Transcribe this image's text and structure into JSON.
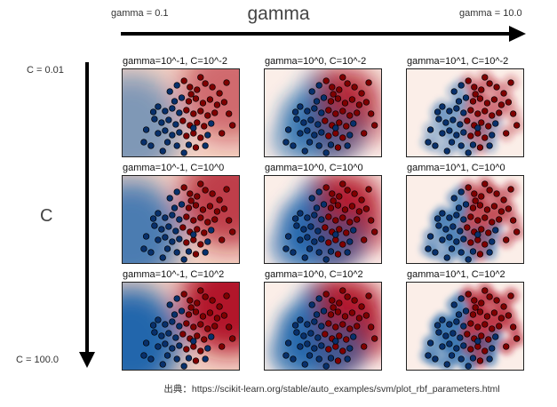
{
  "axes_annotations": {
    "gamma_title": "gamma",
    "gamma_left": "gamma = 0.1",
    "gamma_right": "gamma = 10.0",
    "c_title": "C",
    "c_top": "C = 0.01",
    "c_bottom": "C = 100.0"
  },
  "source_note": "出典：https://scikit-learn.org/stable/auto_examples/svm/plot_rbf_parameters.html",
  "colors": {
    "class_a": "#b2182b",
    "class_b": "#2166ac",
    "neutral": "#f7f7f7",
    "arrow": "#000000"
  },
  "chart_data": {
    "type": "heatmap",
    "layout": "3x3 grid of decision-function heatmaps with scatter overlay",
    "colormap": "RdBu",
    "gamma_values": [
      0.1,
      1.0,
      10.0
    ],
    "C_values": [
      0.01,
      1.0,
      100.0
    ],
    "panels": [
      {
        "title": "gamma=10^-1, C=10^-2",
        "gamma": 0.1,
        "C": 0.01
      },
      {
        "title": "gamma=10^0, C=10^-2",
        "gamma": 1.0,
        "C": 0.01
      },
      {
        "title": "gamma=10^1, C=10^-2",
        "gamma": 10.0,
        "C": 0.01
      },
      {
        "title": "gamma=10^-1, C=10^0",
        "gamma": 0.1,
        "C": 1.0
      },
      {
        "title": "gamma=10^0, C=10^0",
        "gamma": 1.0,
        "C": 1.0
      },
      {
        "title": "gamma=10^1, C=10^0",
        "gamma": 10.0,
        "C": 1.0
      },
      {
        "title": "gamma=10^-1, C=10^2",
        "gamma": 0.1,
        "C": 100.0
      },
      {
        "title": "gamma=10^0, C=10^2",
        "gamma": 1.0,
        "C": 100.0
      },
      {
        "title": "gamma=10^1, C=10^2",
        "gamma": 10.0,
        "C": 100.0
      }
    ],
    "scatter_points": [
      {
        "x": 0.4,
        "y": 0.25,
        "c": 0
      },
      {
        "x": 0.46,
        "y": 0.18,
        "c": 0
      },
      {
        "x": 0.52,
        "y": 0.13,
        "c": 1
      },
      {
        "x": 0.57,
        "y": 0.2,
        "c": 1
      },
      {
        "x": 0.63,
        "y": 0.23,
        "c": 1
      },
      {
        "x": 0.7,
        "y": 0.16,
        "c": 1
      },
      {
        "x": 0.76,
        "y": 0.2,
        "c": 1
      },
      {
        "x": 0.82,
        "y": 0.27,
        "c": 1
      },
      {
        "x": 0.5,
        "y": 0.32,
        "c": 0
      },
      {
        "x": 0.56,
        "y": 0.36,
        "c": 1
      },
      {
        "x": 0.62,
        "y": 0.33,
        "c": 1
      },
      {
        "x": 0.68,
        "y": 0.38,
        "c": 1
      },
      {
        "x": 0.74,
        "y": 0.34,
        "c": 1
      },
      {
        "x": 0.8,
        "y": 0.4,
        "c": 1
      },
      {
        "x": 0.86,
        "y": 0.37,
        "c": 1
      },
      {
        "x": 0.3,
        "y": 0.42,
        "c": 0
      },
      {
        "x": 0.36,
        "y": 0.47,
        "c": 0
      },
      {
        "x": 0.42,
        "y": 0.44,
        "c": 0
      },
      {
        "x": 0.48,
        "y": 0.49,
        "c": 0
      },
      {
        "x": 0.54,
        "y": 0.46,
        "c": 1
      },
      {
        "x": 0.6,
        "y": 0.5,
        "c": 1
      },
      {
        "x": 0.66,
        "y": 0.47,
        "c": 1
      },
      {
        "x": 0.72,
        "y": 0.52,
        "c": 1
      },
      {
        "x": 0.78,
        "y": 0.49,
        "c": 1
      },
      {
        "x": 0.9,
        "y": 0.5,
        "c": 1
      },
      {
        "x": 0.27,
        "y": 0.56,
        "c": 0
      },
      {
        "x": 0.33,
        "y": 0.6,
        "c": 0
      },
      {
        "x": 0.39,
        "y": 0.57,
        "c": 0
      },
      {
        "x": 0.45,
        "y": 0.62,
        "c": 0
      },
      {
        "x": 0.51,
        "y": 0.58,
        "c": 1
      },
      {
        "x": 0.57,
        "y": 0.63,
        "c": 1
      },
      {
        "x": 0.63,
        "y": 0.6,
        "c": 1
      },
      {
        "x": 0.69,
        "y": 0.64,
        "c": 1
      },
      {
        "x": 0.75,
        "y": 0.61,
        "c": 0
      },
      {
        "x": 0.93,
        "y": 0.63,
        "c": 1
      },
      {
        "x": 0.2,
        "y": 0.68,
        "c": 0
      },
      {
        "x": 0.3,
        "y": 0.72,
        "c": 0
      },
      {
        "x": 0.36,
        "y": 0.69,
        "c": 0
      },
      {
        "x": 0.42,
        "y": 0.74,
        "c": 0
      },
      {
        "x": 0.48,
        "y": 0.71,
        "c": 0
      },
      {
        "x": 0.54,
        "y": 0.75,
        "c": 1
      },
      {
        "x": 0.6,
        "y": 0.72,
        "c": 1
      },
      {
        "x": 0.66,
        "y": 0.77,
        "c": 1
      },
      {
        "x": 0.72,
        "y": 0.74,
        "c": 0
      },
      {
        "x": 0.84,
        "y": 0.72,
        "c": 1
      },
      {
        "x": 0.18,
        "y": 0.82,
        "c": 0
      },
      {
        "x": 0.24,
        "y": 0.86,
        "c": 0
      },
      {
        "x": 0.38,
        "y": 0.82,
        "c": 0
      },
      {
        "x": 0.46,
        "y": 0.86,
        "c": 0
      },
      {
        "x": 0.56,
        "y": 0.85,
        "c": 0
      },
      {
        "x": 0.62,
        "y": 0.88,
        "c": 1
      },
      {
        "x": 0.7,
        "y": 0.86,
        "c": 0
      },
      {
        "x": 0.34,
        "y": 0.92,
        "c": 0
      },
      {
        "x": 0.52,
        "y": 0.94,
        "c": 0
      },
      {
        "x": 0.6,
        "y": 0.66,
        "c": 0
      },
      {
        "x": 0.44,
        "y": 0.36,
        "c": 0
      },
      {
        "x": 0.58,
        "y": 0.28,
        "c": 1
      },
      {
        "x": 0.66,
        "y": 0.09,
        "c": 1
      },
      {
        "x": 0.88,
        "y": 0.15,
        "c": 1
      },
      {
        "x": 0.26,
        "y": 0.48,
        "c": 0
      }
    ]
  }
}
